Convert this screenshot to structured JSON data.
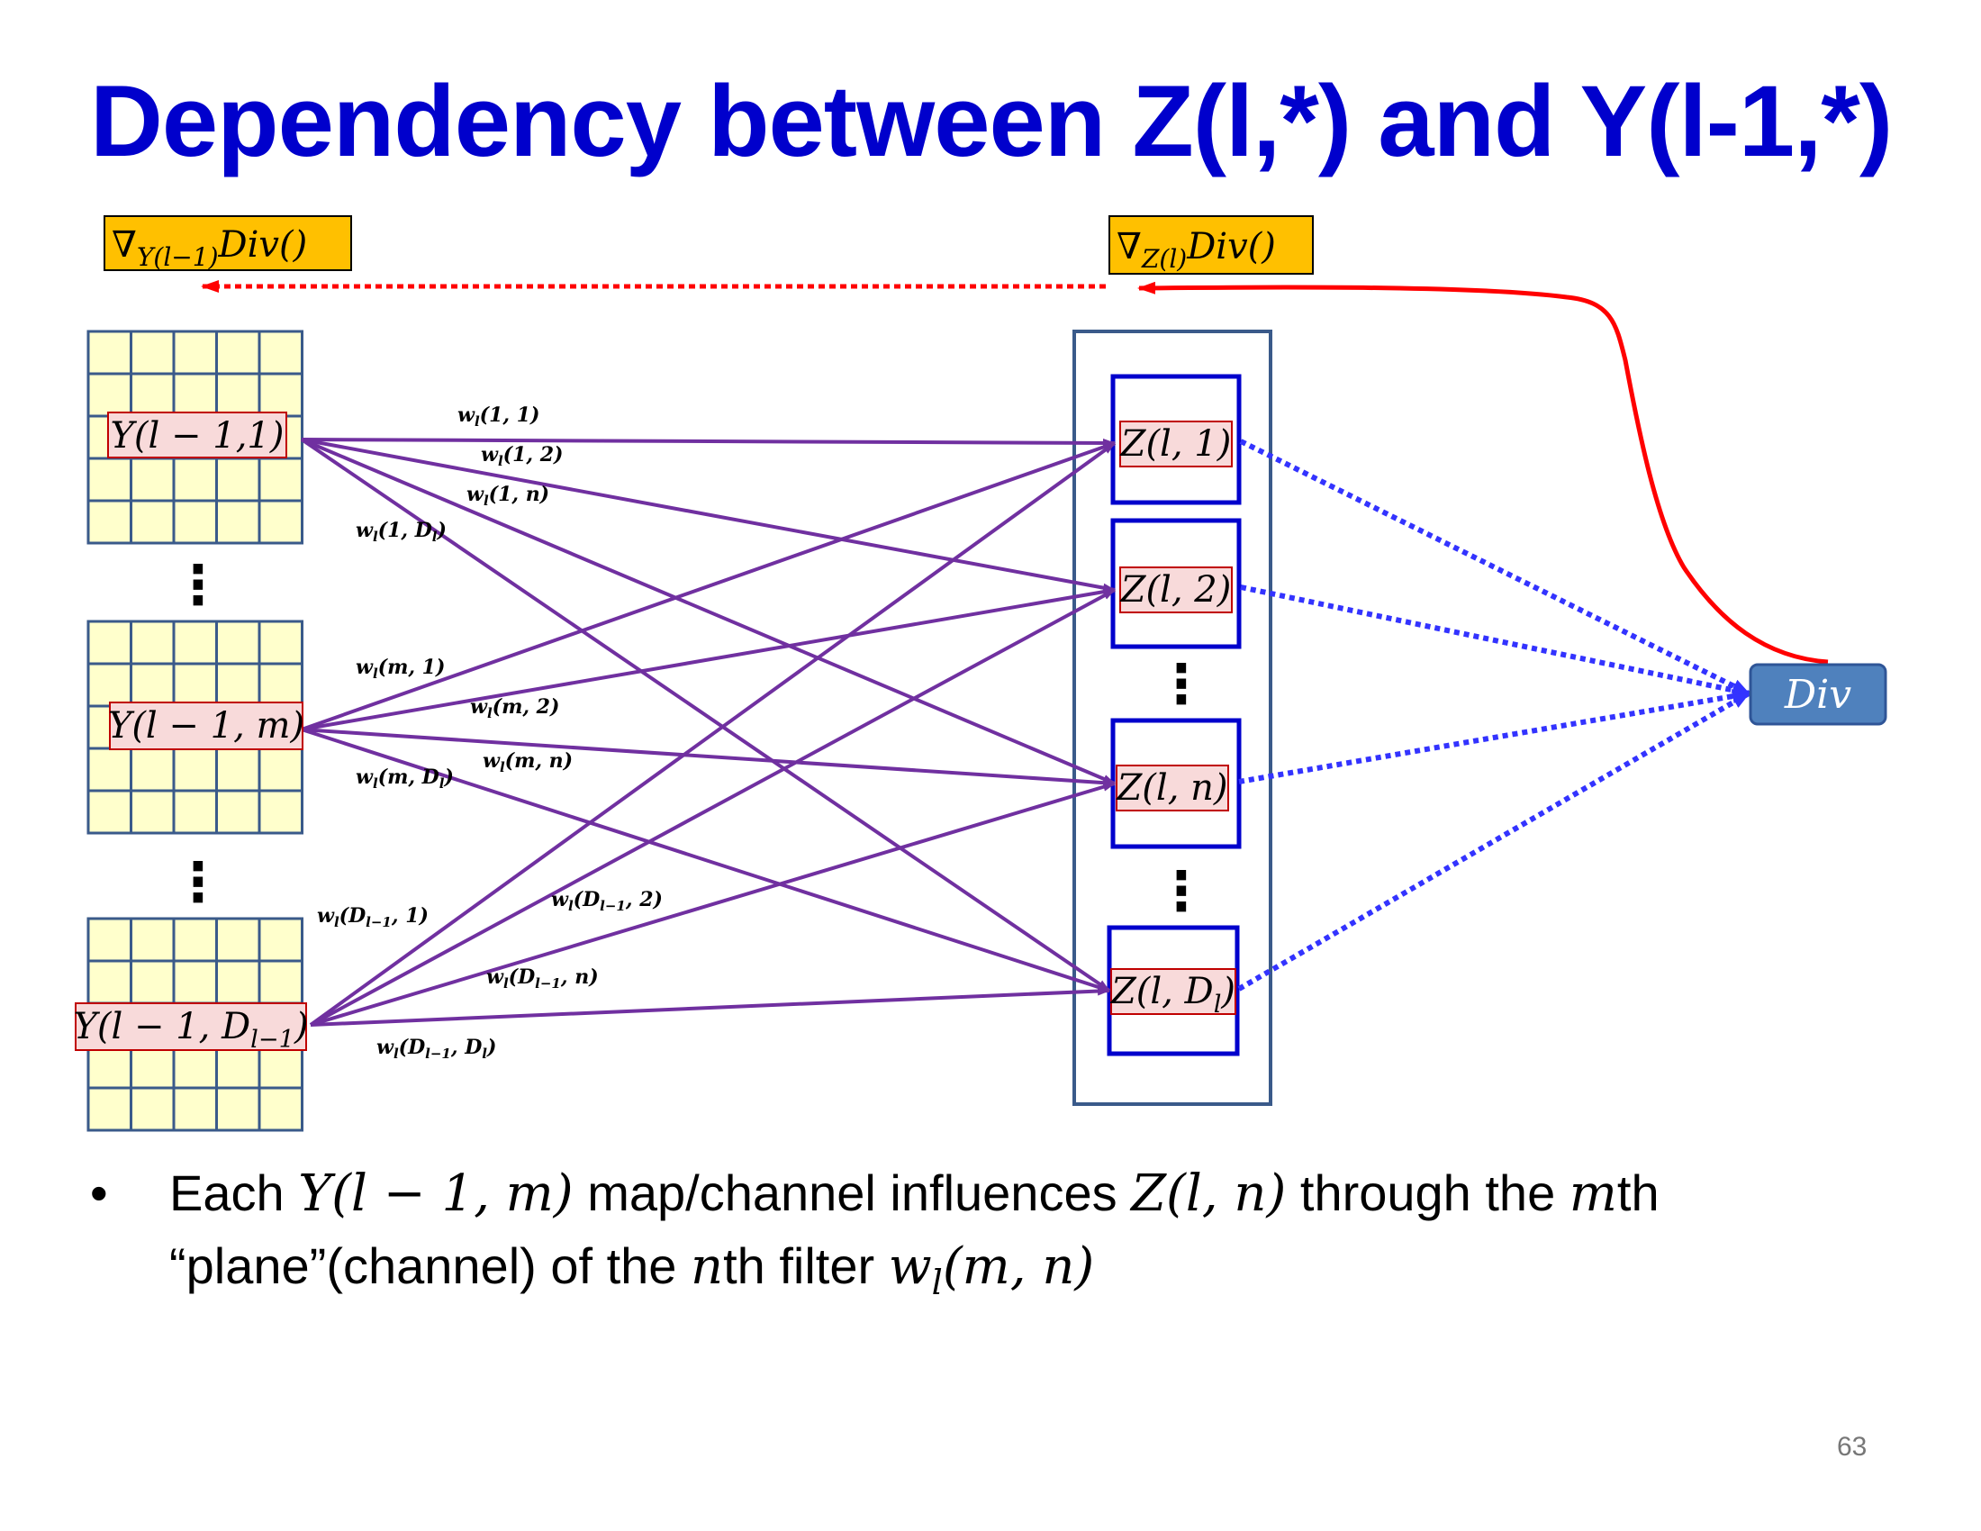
{
  "title": "Dependency between Z(l,*) and Y(l-1,*)",
  "gradients": {
    "left": {
      "nabla": "∇",
      "sub": "Y(l−1)",
      "rest": "Div()"
    },
    "right": {
      "nabla": "∇",
      "sub": "Z(l)",
      "rest": "Div()"
    }
  },
  "y_maps": [
    {
      "main": "Y(l − 1,1)",
      "sub": "",
      "tail": ""
    },
    {
      "main": "Y(l − 1, m)",
      "sub": "",
      "tail": ""
    },
    {
      "main": "Y(l − 1, D",
      "sub": "l−1",
      "tail": ")"
    }
  ],
  "z_maps": [
    {
      "main": "Z(l, 1)",
      "sub": "",
      "tail": ""
    },
    {
      "main": "Z(l, 2)",
      "sub": "",
      "tail": ""
    },
    {
      "main": "Z(l, n)",
      "sub": "",
      "tail": ""
    },
    {
      "main": "Z(l, D",
      "sub": "l",
      "tail": ")"
    }
  ],
  "weights": [
    {
      "w": "w",
      "wsub": "l",
      "args": "(1, 1)"
    },
    {
      "w": "w",
      "wsub": "l",
      "args": "(1, 2)"
    },
    {
      "w": "w",
      "wsub": "l",
      "args": "(1, n)"
    },
    {
      "w": "w",
      "wsub": "l",
      "args": "(1, D",
      "argsub": "l",
      "tail": ")"
    },
    {
      "w": "w",
      "wsub": "l",
      "args": "(m, 1)"
    },
    {
      "w": "w",
      "wsub": "l",
      "args": "(m, 2)"
    },
    {
      "w": "w",
      "wsub": "l",
      "args": "(m, n)"
    },
    {
      "w": "w",
      "wsub": "l",
      "args": "(m, D",
      "argsub": "l",
      "tail": ")"
    },
    {
      "w": "w",
      "wsub": "l",
      "args": "(D",
      "argsub": "l−1",
      "tail": ", 1)"
    },
    {
      "w": "w",
      "wsub": "l",
      "args": "(D",
      "argsub": "l−1",
      "tail": ", 2)"
    },
    {
      "w": "w",
      "wsub": "l",
      "args": "(D",
      "argsub": "l−1",
      "tail": ", n)"
    },
    {
      "w": "w",
      "wsub": "l",
      "args": "(D",
      "argsub": "l−1",
      "tail": ", D",
      "argsub2": "l",
      "tail2": ")"
    }
  ],
  "div_label": "Div",
  "ellipsis": "⋮",
  "bullet": {
    "symbol": "•",
    "parts": {
      "p1": "Each ",
      "m1": "Y(l − 1, m)",
      "p2": "  map/channel influences ",
      "m2": "Z(l, n)",
      "p3": " through the ",
      "m3": "m",
      "p4": "th",
      "p5": "“plane”(channel) of the ",
      "m4": "n",
      "p6": "th filter ",
      "m5": "w",
      "m5sub": "l",
      "m6": "(m, n)"
    }
  },
  "page_number": "63",
  "colors": {
    "title": "#0000cc",
    "purple": "#7030a0",
    "red": "#ff0000",
    "blue_dots": "#3333ff",
    "grid_fill": "#ffffcc",
    "grid_stroke": "#3a5a8a",
    "label_fill": "#f8dada",
    "label_stroke": "#c00000",
    "grad_fill": "#ffc000",
    "div_fill": "#4f81bd",
    "z_stroke": "#0000cc",
    "panel_stroke": "#3a5a8a"
  }
}
